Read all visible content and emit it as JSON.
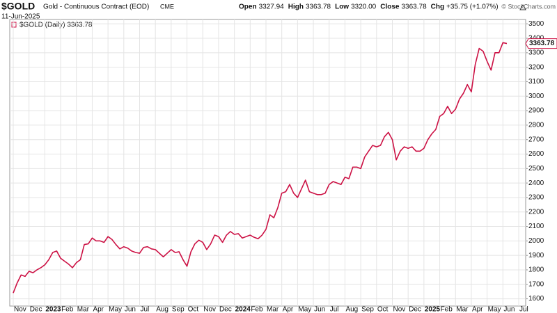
{
  "header": {
    "symbol": "$GOLD",
    "name": "Gold - Continuous Contract (EOD)",
    "exchange": "CME",
    "date": "11-Jun-2025",
    "quote": [
      {
        "label": "Open",
        "value": "3327.94"
      },
      {
        "label": "High",
        "value": "3363.78"
      },
      {
        "label": "Low",
        "value": "3320.00"
      },
      {
        "label": "Close",
        "value": "3363.78"
      },
      {
        "label": "Chg",
        "value": "+35.75 (+1.07%)"
      }
    ],
    "copyright": "© StockCharts.com"
  },
  "chart_data": {
    "type": "line",
    "categories": [
      "Nov",
      null,
      null,
      null,
      "Dec",
      null,
      null,
      null,
      "2023",
      null,
      null,
      null,
      "Feb",
      null,
      null,
      null,
      "Mar",
      null,
      null,
      null,
      "Apr",
      null,
      null,
      null,
      "May",
      null,
      null,
      null,
      "Jun",
      null,
      null,
      null,
      "Jul",
      null,
      null,
      null,
      "Aug",
      null,
      null,
      null,
      "Sep",
      null,
      null,
      null,
      "Oct",
      null,
      null,
      null,
      "Nov",
      null,
      null,
      null,
      "Dec",
      null,
      null,
      null,
      "2024",
      null,
      null,
      null,
      "Feb",
      null,
      null,
      null,
      "Mar",
      null,
      null,
      null,
      "Apr",
      null,
      null,
      null,
      "May",
      null,
      null,
      null,
      "Jun",
      null,
      null,
      null,
      "Jul",
      null,
      null,
      null,
      "Aug",
      null,
      null,
      null,
      "Sep",
      null,
      null,
      null,
      "Oct",
      null,
      null,
      null,
      "Nov",
      null,
      null,
      null,
      "Dec",
      null,
      null,
      null,
      "2025",
      null,
      null,
      null,
      "Feb",
      null,
      null,
      null,
      "Mar",
      null,
      null,
      null,
      "Apr",
      null,
      null,
      null,
      "May",
      null,
      null,
      null,
      "Jun",
      null,
      null,
      null,
      "Jul"
    ],
    "bold_categories": [
      "2023",
      "2024",
      "2025"
    ],
    "series": [
      {
        "name": "$GOLD (Daily) 3363.78",
        "color": "#cc1144",
        "values": [
          1640,
          1710,
          1765,
          1755,
          1790,
          1780,
          1800,
          1815,
          1835,
          1870,
          1920,
          1930,
          1880,
          1860,
          1840,
          1815,
          1850,
          1870,
          1975,
          1980,
          2020,
          2000,
          2000,
          1990,
          2030,
          2010,
          1975,
          1945,
          1960,
          1950,
          1930,
          1920,
          1915,
          1955,
          1960,
          1945,
          1940,
          1915,
          1890,
          1915,
          1940,
          1920,
          1925,
          1870,
          1825,
          1925,
          1980,
          2005,
          1990,
          1940,
          1980,
          2040,
          2030,
          1990,
          2040,
          2065,
          2045,
          2050,
          2020,
          2030,
          2040,
          2025,
          2015,
          2040,
          2080,
          2180,
          2160,
          2230,
          2330,
          2340,
          2390,
          2330,
          2300,
          2360,
          2420,
          2340,
          2330,
          2320,
          2320,
          2330,
          2390,
          2410,
          2400,
          2390,
          2440,
          2430,
          2510,
          2510,
          2500,
          2580,
          2620,
          2660,
          2650,
          2660,
          2720,
          2750,
          2700,
          2560,
          2620,
          2650,
          2640,
          2650,
          2620,
          2620,
          2640,
          2700,
          2740,
          2770,
          2860,
          2880,
          2930,
          2880,
          2910,
          2980,
          3020,
          3080,
          3030,
          3220,
          3330,
          3310,
          3240,
          3180,
          3300,
          3300,
          3370,
          3363.78,
          null,
          null,
          null
        ]
      }
    ],
    "ylim": [
      1550,
      3530
    ],
    "yticks": [
      1600,
      1700,
      1800,
      1900,
      2000,
      2100,
      2200,
      2300,
      2400,
      2500,
      2600,
      2700,
      2800,
      2900,
      3000,
      3100,
      3200,
      3300,
      3400,
      3500
    ],
    "grid": true
  }
}
